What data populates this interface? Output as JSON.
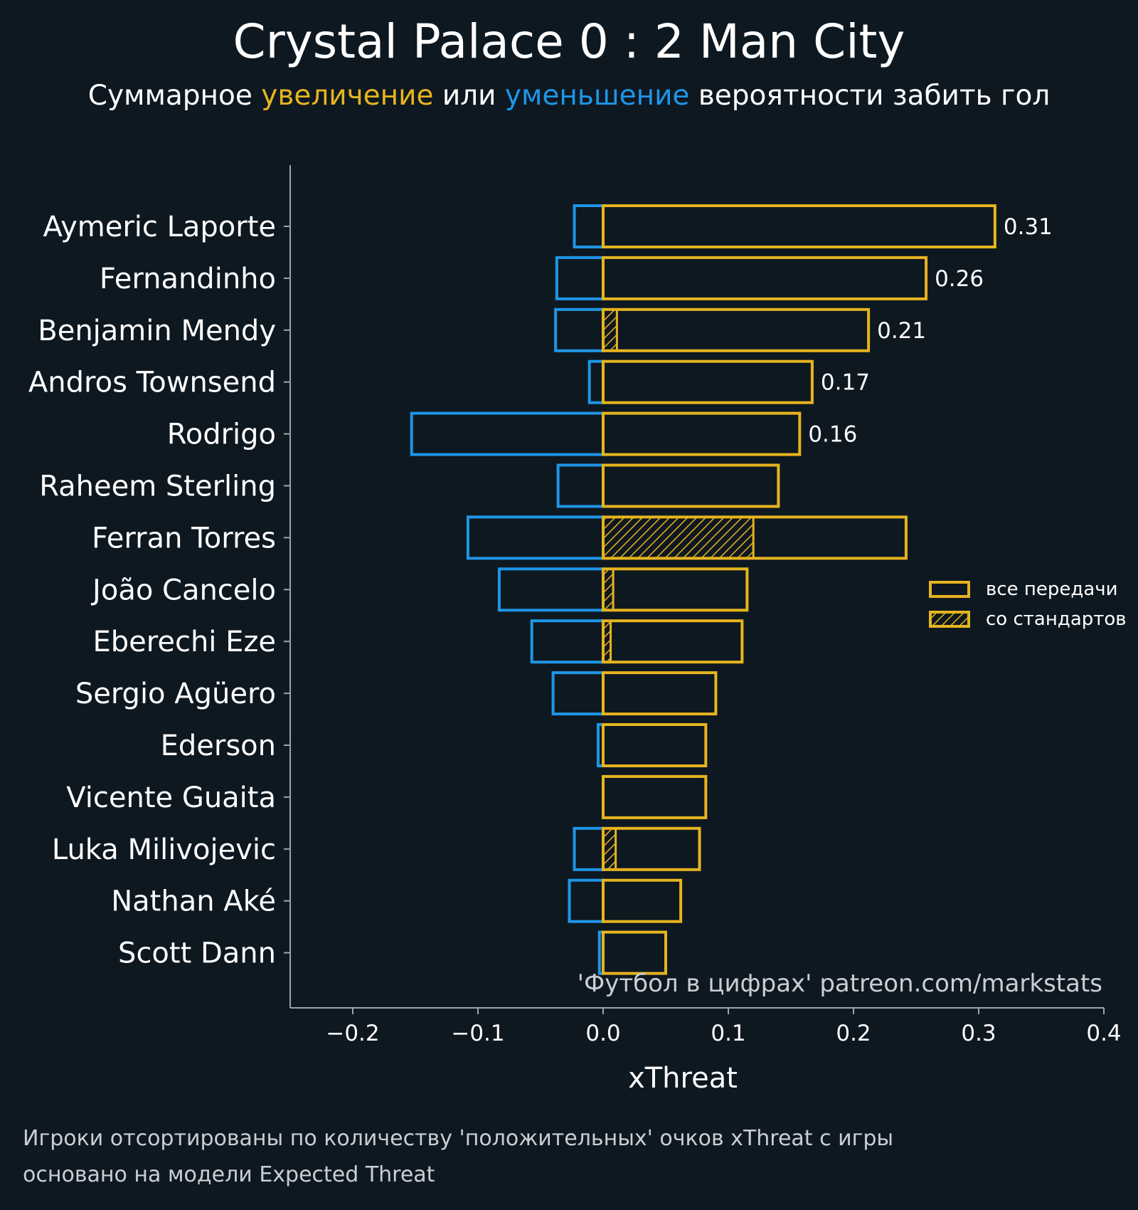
{
  "chart_data": {
    "type": "bar",
    "title": "Crystal Palace 0 : 2 Man City",
    "subtitle_parts": [
      "Суммарное ",
      "увеличение",
      " или ",
      "уменьшение",
      " вероятности забить гол"
    ],
    "xlabel": "xThreat",
    "xlim": [
      -0.25,
      0.4
    ],
    "xticks": [
      -0.2,
      -0.1,
      0.0,
      0.1,
      0.2,
      0.3,
      0.4
    ],
    "xtick_labels": [
      "−0.2",
      "−0.1",
      "0.0",
      "0.1",
      "0.2",
      "0.3",
      "0.4"
    ],
    "categories": [
      "Aymeric Laporte",
      "Fernandinho",
      "Benjamin Mendy",
      "Andros Townsend",
      "Rodrigo",
      "Raheem Sterling",
      "Ferran Torres",
      "João Cancelo",
      "Eberechi Eze",
      "Sergio Agüero",
      "Ederson",
      "Vicente Guaita",
      "Luka Milivojevic",
      "Nathan Aké",
      "Scott Dann"
    ],
    "series": [
      {
        "name": "все передачи (увеличение)",
        "color": "#e6b41e",
        "values": [
          0.313,
          0.258,
          0.212,
          0.167,
          0.157,
          0.14,
          0.242,
          0.115,
          0.111,
          0.09,
          0.082,
          0.082,
          0.077,
          0.062,
          0.05
        ]
      },
      {
        "name": "со стандартов",
        "color": "#e6b41e",
        "hatched": true,
        "values": [
          0.0,
          0.0,
          0.011,
          0.0,
          0.0,
          0.0,
          0.12,
          0.008,
          0.006,
          0.0,
          0.0,
          0.0,
          0.01,
          0.0,
          0.0
        ]
      },
      {
        "name": "уменьшение",
        "color": "#1e96e6",
        "values": [
          -0.023,
          -0.037,
          -0.038,
          -0.011,
          -0.153,
          -0.036,
          -0.108,
          -0.083,
          -0.057,
          -0.04,
          -0.004,
          0.0,
          -0.023,
          -0.027,
          -0.003
        ]
      }
    ],
    "value_labels": [
      "0.31",
      "0.26",
      "0.21",
      "0.17",
      "0.16"
    ],
    "legend": {
      "position": "right",
      "items": [
        "все передачи",
        "со стандартов"
      ]
    },
    "watermark": "'Футбол в цифрах' patreon.com/markstats",
    "colors": {
      "background": "#0e1821",
      "increase": "#e6b41e",
      "decrease": "#1e96e6",
      "axis": "#9aa5ad"
    }
  },
  "footnotes": [
    "Игроки отсортированы по количеству 'положительных' очков xThreat с игры",
    "основано на модели Expected Threat"
  ]
}
